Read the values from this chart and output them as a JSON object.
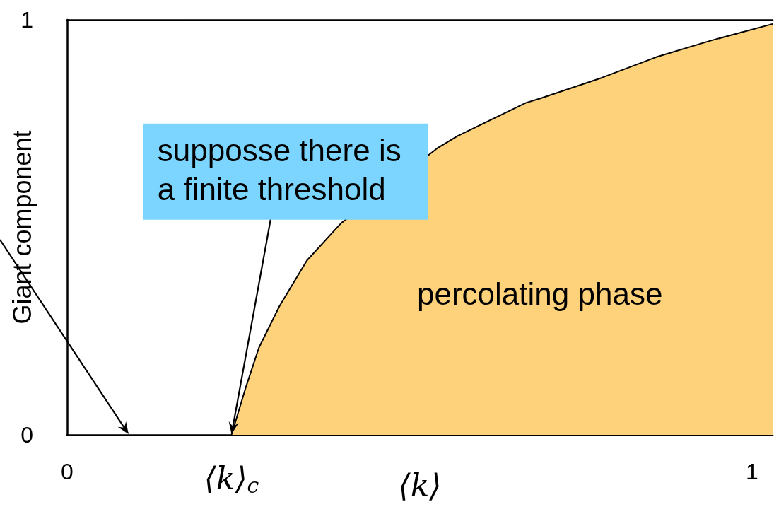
{
  "chart_data": {
    "type": "area",
    "xlabel": "⟨k⟩",
    "ylabel": "Giant component",
    "x": [
      0.24,
      0.26,
      0.28,
      0.31,
      0.35,
      0.4,
      0.54,
      0.57,
      0.67,
      0.69,
      0.78,
      0.86,
      0.94,
      1.03
    ],
    "values": [
      0,
      0.11,
      0.21,
      0.31,
      0.42,
      0.51,
      0.69,
      0.72,
      0.8,
      0.81,
      0.86,
      0.91,
      0.95,
      0.99
    ],
    "color": "#fdd27b",
    "xlim": [
      0,
      1.03
    ],
    "ylim": [
      0,
      1
    ],
    "xticks": [
      0,
      {
        "value": 0.24,
        "label": "⟨k⟩$_{c}$"
      },
      1
    ],
    "yticks": [
      0,
      1
    ],
    "annotations": [
      {
        "text": "supposse there is a finite threshold",
        "x": 0.24,
        "y": 0
      },
      "percolating phase"
    ],
    "marker": "none",
    "grid": false
  }
}
